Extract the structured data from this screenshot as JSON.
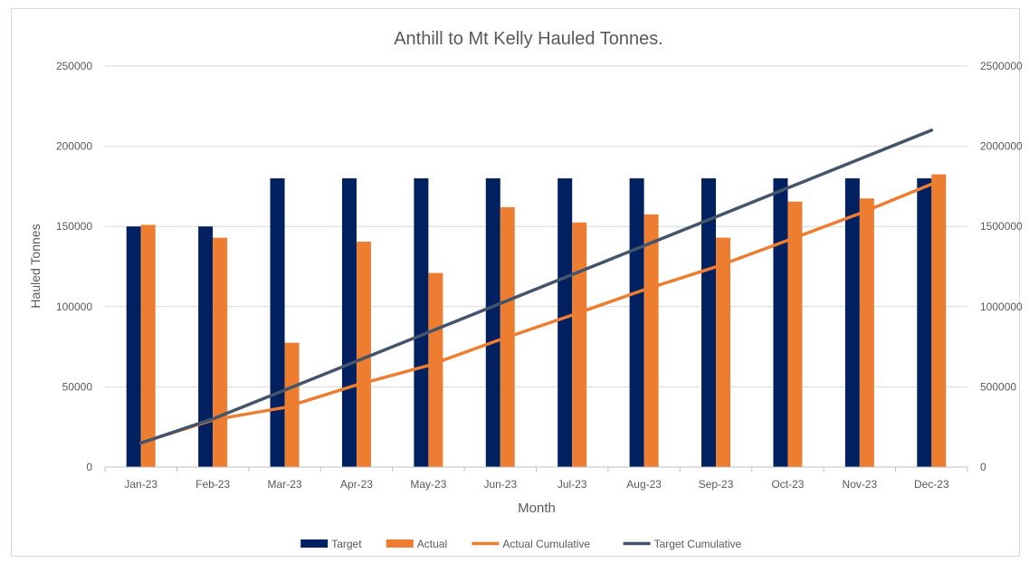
{
  "chart_data": {
    "type": "bar",
    "title": "Anthill to Mt Kelly Hauled Tonnes.",
    "xlabel": "Month",
    "ylabel": "Hauled Tonnes",
    "ylabel_right": "",
    "categories": [
      "Jan-23",
      "Feb-23",
      "Mar-23",
      "Apr-23",
      "May-23",
      "Jun-23",
      "Jul-23",
      "Aug-23",
      "Sep-23",
      "Oct-23",
      "Nov-23",
      "Dec-23"
    ],
    "ylim": [
      0,
      250000
    ],
    "y_ticks": [
      "0",
      "50000",
      "100000",
      "150000",
      "200000",
      "250000"
    ],
    "y2lim": [
      0,
      2500000
    ],
    "y2_ticks": [
      "0",
      "500000",
      "1000000",
      "1500000",
      "2000000",
      "2500000"
    ],
    "grid": true,
    "legend_position": "bottom",
    "series": [
      {
        "name": "Target",
        "type": "bar",
        "axis": "left",
        "color": "#002060",
        "values": [
          150000,
          150000,
          180000,
          180000,
          180000,
          180000,
          180000,
          180000,
          180000,
          180000,
          180000,
          180000
        ]
      },
      {
        "name": "Actual",
        "type": "bar",
        "axis": "left",
        "color": "#ED7D31",
        "values": [
          151000,
          143000,
          77500,
          140500,
          121000,
          162000,
          152500,
          157500,
          143000,
          165500,
          167500,
          182500
        ]
      },
      {
        "name": "Actual Cumulative",
        "type": "line",
        "axis": "right",
        "color": "#ED7D31",
        "values": [
          151000,
          294000,
          371500,
          512000,
          633000,
          795000,
          947500,
          1105000,
          1248000,
          1413500,
          1581000,
          1763500
        ]
      },
      {
        "name": "Target Cumulative",
        "type": "line",
        "axis": "right",
        "color": "#44546A",
        "values": [
          150000,
          300000,
          480000,
          660000,
          840000,
          1020000,
          1200000,
          1380000,
          1560000,
          1740000,
          1920000,
          2100000
        ]
      }
    ]
  }
}
